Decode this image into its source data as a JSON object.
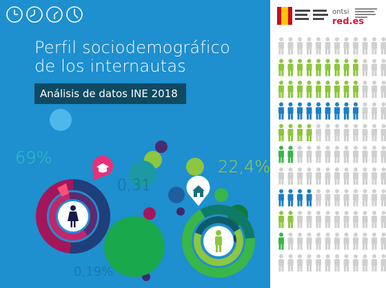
{
  "cover": {
    "title_line1": "Perfil sociodemográfico",
    "title_line2": "de los internautas",
    "subtitle": "Análisis de datos INE 2018",
    "stat_1": "69%",
    "stat_2": "0,31",
    "stat_3": "22,4%",
    "stat_4": "0,19%"
  },
  "logos": {
    "ontsi": "ontsi",
    "red_es": "red.es"
  },
  "icons": {
    "clocks": "clock-icon",
    "graduation": "graduation-cap-icon",
    "house": "house-icon",
    "woman": "woman-icon",
    "man": "man-icon",
    "person": "person-icon"
  },
  "colors": {
    "background": "#1e8fcf",
    "subtitle_bg": "#0f4a62",
    "teal": "#35c6b4",
    "lime": "#9fd240",
    "green": "#39b54a",
    "magenta": "#a3175a",
    "navy": "#1f3f7a",
    "person_blue": "#1e7fc4",
    "person_green": "#8dc63f",
    "person_grey": "#d0d0d0"
  },
  "people_grid": [
    {
      "color": "#d0d0d0",
      "count": 0
    },
    {
      "color": "#8dc63f",
      "count": 9
    },
    {
      "color": "#8dc63f",
      "count": 9
    },
    {
      "color": "#1e7fc4",
      "count": 9
    },
    {
      "color": "#8dc63f",
      "count": 4
    },
    {
      "color": "#39b54a",
      "count": 2
    },
    {
      "color": "#d0d0d0",
      "count": 0
    },
    {
      "color": "#1e7fc4",
      "count": 4
    },
    {
      "color": "#8dc63f",
      "count": 2
    },
    {
      "color": "#39b54a",
      "count": 1
    },
    {
      "color": "#d0d0d0",
      "count": 0
    }
  ]
}
